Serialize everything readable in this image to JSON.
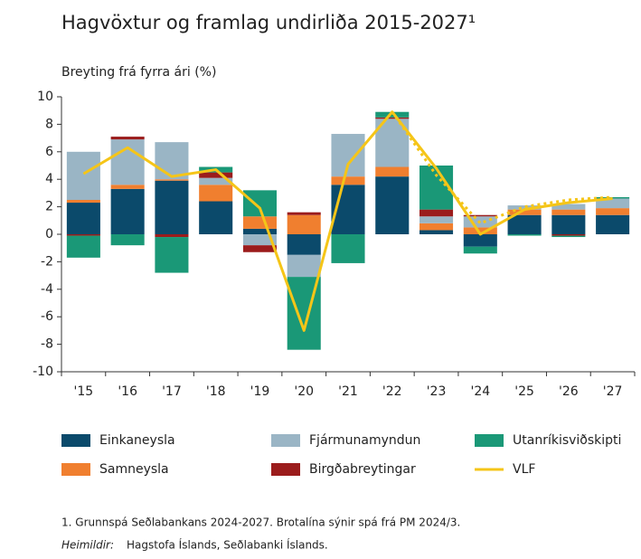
{
  "chart_data": {
    "type": "bar",
    "title": "Hagvöxtur og framlag undirliða 2015-2027¹",
    "y_axis_label": "Breyting frá fyrra ári (%)",
    "categories": [
      "'15",
      "'16",
      "'17",
      "'18",
      "'19",
      "'20",
      "'21",
      "'22",
      "'23",
      "'24",
      "'25",
      "'26",
      "'27"
    ],
    "stacked": true,
    "series": [
      {
        "name": "Einkaneysla",
        "type": "bar",
        "color": "#0b4a6b",
        "values": [
          2.3,
          3.3,
          3.9,
          2.4,
          0.4,
          -1.5,
          3.6,
          4.2,
          0.3,
          -0.9,
          1.4,
          1.4,
          1.4
        ]
      },
      {
        "name": "Samneysla",
        "type": "bar",
        "color": "#f07f2f",
        "values": [
          0.2,
          0.3,
          0.1,
          1.2,
          0.9,
          1.4,
          0.6,
          0.7,
          0.5,
          0.5,
          0.4,
          0.4,
          0.5
        ]
      },
      {
        "name": "Fjármunamyndun",
        "type": "bar",
        "color": "#9ab5c5",
        "values": [
          3.5,
          3.3,
          2.7,
          0.5,
          -0.8,
          -1.6,
          3.1,
          3.5,
          0.5,
          0.8,
          0.3,
          0.4,
          0.7
        ]
      },
      {
        "name": "Birgðabreytingar",
        "type": "bar",
        "color": "#9b1c1c",
        "values": [
          -0.1,
          0.2,
          -0.2,
          0.4,
          -0.5,
          0.2,
          0.0,
          0.1,
          0.5,
          0.1,
          0.0,
          -0.1,
          0.0
        ]
      },
      {
        "name": "Utanríkisviðskipti",
        "type": "bar",
        "color": "#1a9877",
        "values": [
          -1.6,
          -0.8,
          -2.6,
          0.4,
          1.9,
          -5.3,
          -2.1,
          0.4,
          3.2,
          -0.5,
          -0.1,
          -0.1,
          0.1
        ]
      },
      {
        "name": "VLF",
        "type": "line",
        "color": "#f5c518",
        "values": [
          4.4,
          6.3,
          4.2,
          4.7,
          1.9,
          -7.0,
          5.1,
          8.9,
          4.8,
          0.0,
          1.8,
          2.3,
          2.6
        ]
      }
    ],
    "prior_forecast": {
      "type": "dashed",
      "color": "#f5c518",
      "values": [
        null,
        null,
        null,
        null,
        null,
        null,
        null,
        8.9,
        4.3,
        0.8,
        2.0,
        2.5,
        2.7
      ]
    },
    "ylim": [
      -10,
      10
    ],
    "yticks": [
      -10,
      -8,
      -6,
      -4,
      -2,
      0,
      2,
      4,
      6,
      8,
      10
    ],
    "footnote": "1. Grunnspá Seðlabankans 2024-2027. Brotalína sýnir spá frá PM 2024/3.",
    "source_label": "Heimildir:",
    "source": "Hagstofa Íslands, Seðlabanki Íslands."
  }
}
